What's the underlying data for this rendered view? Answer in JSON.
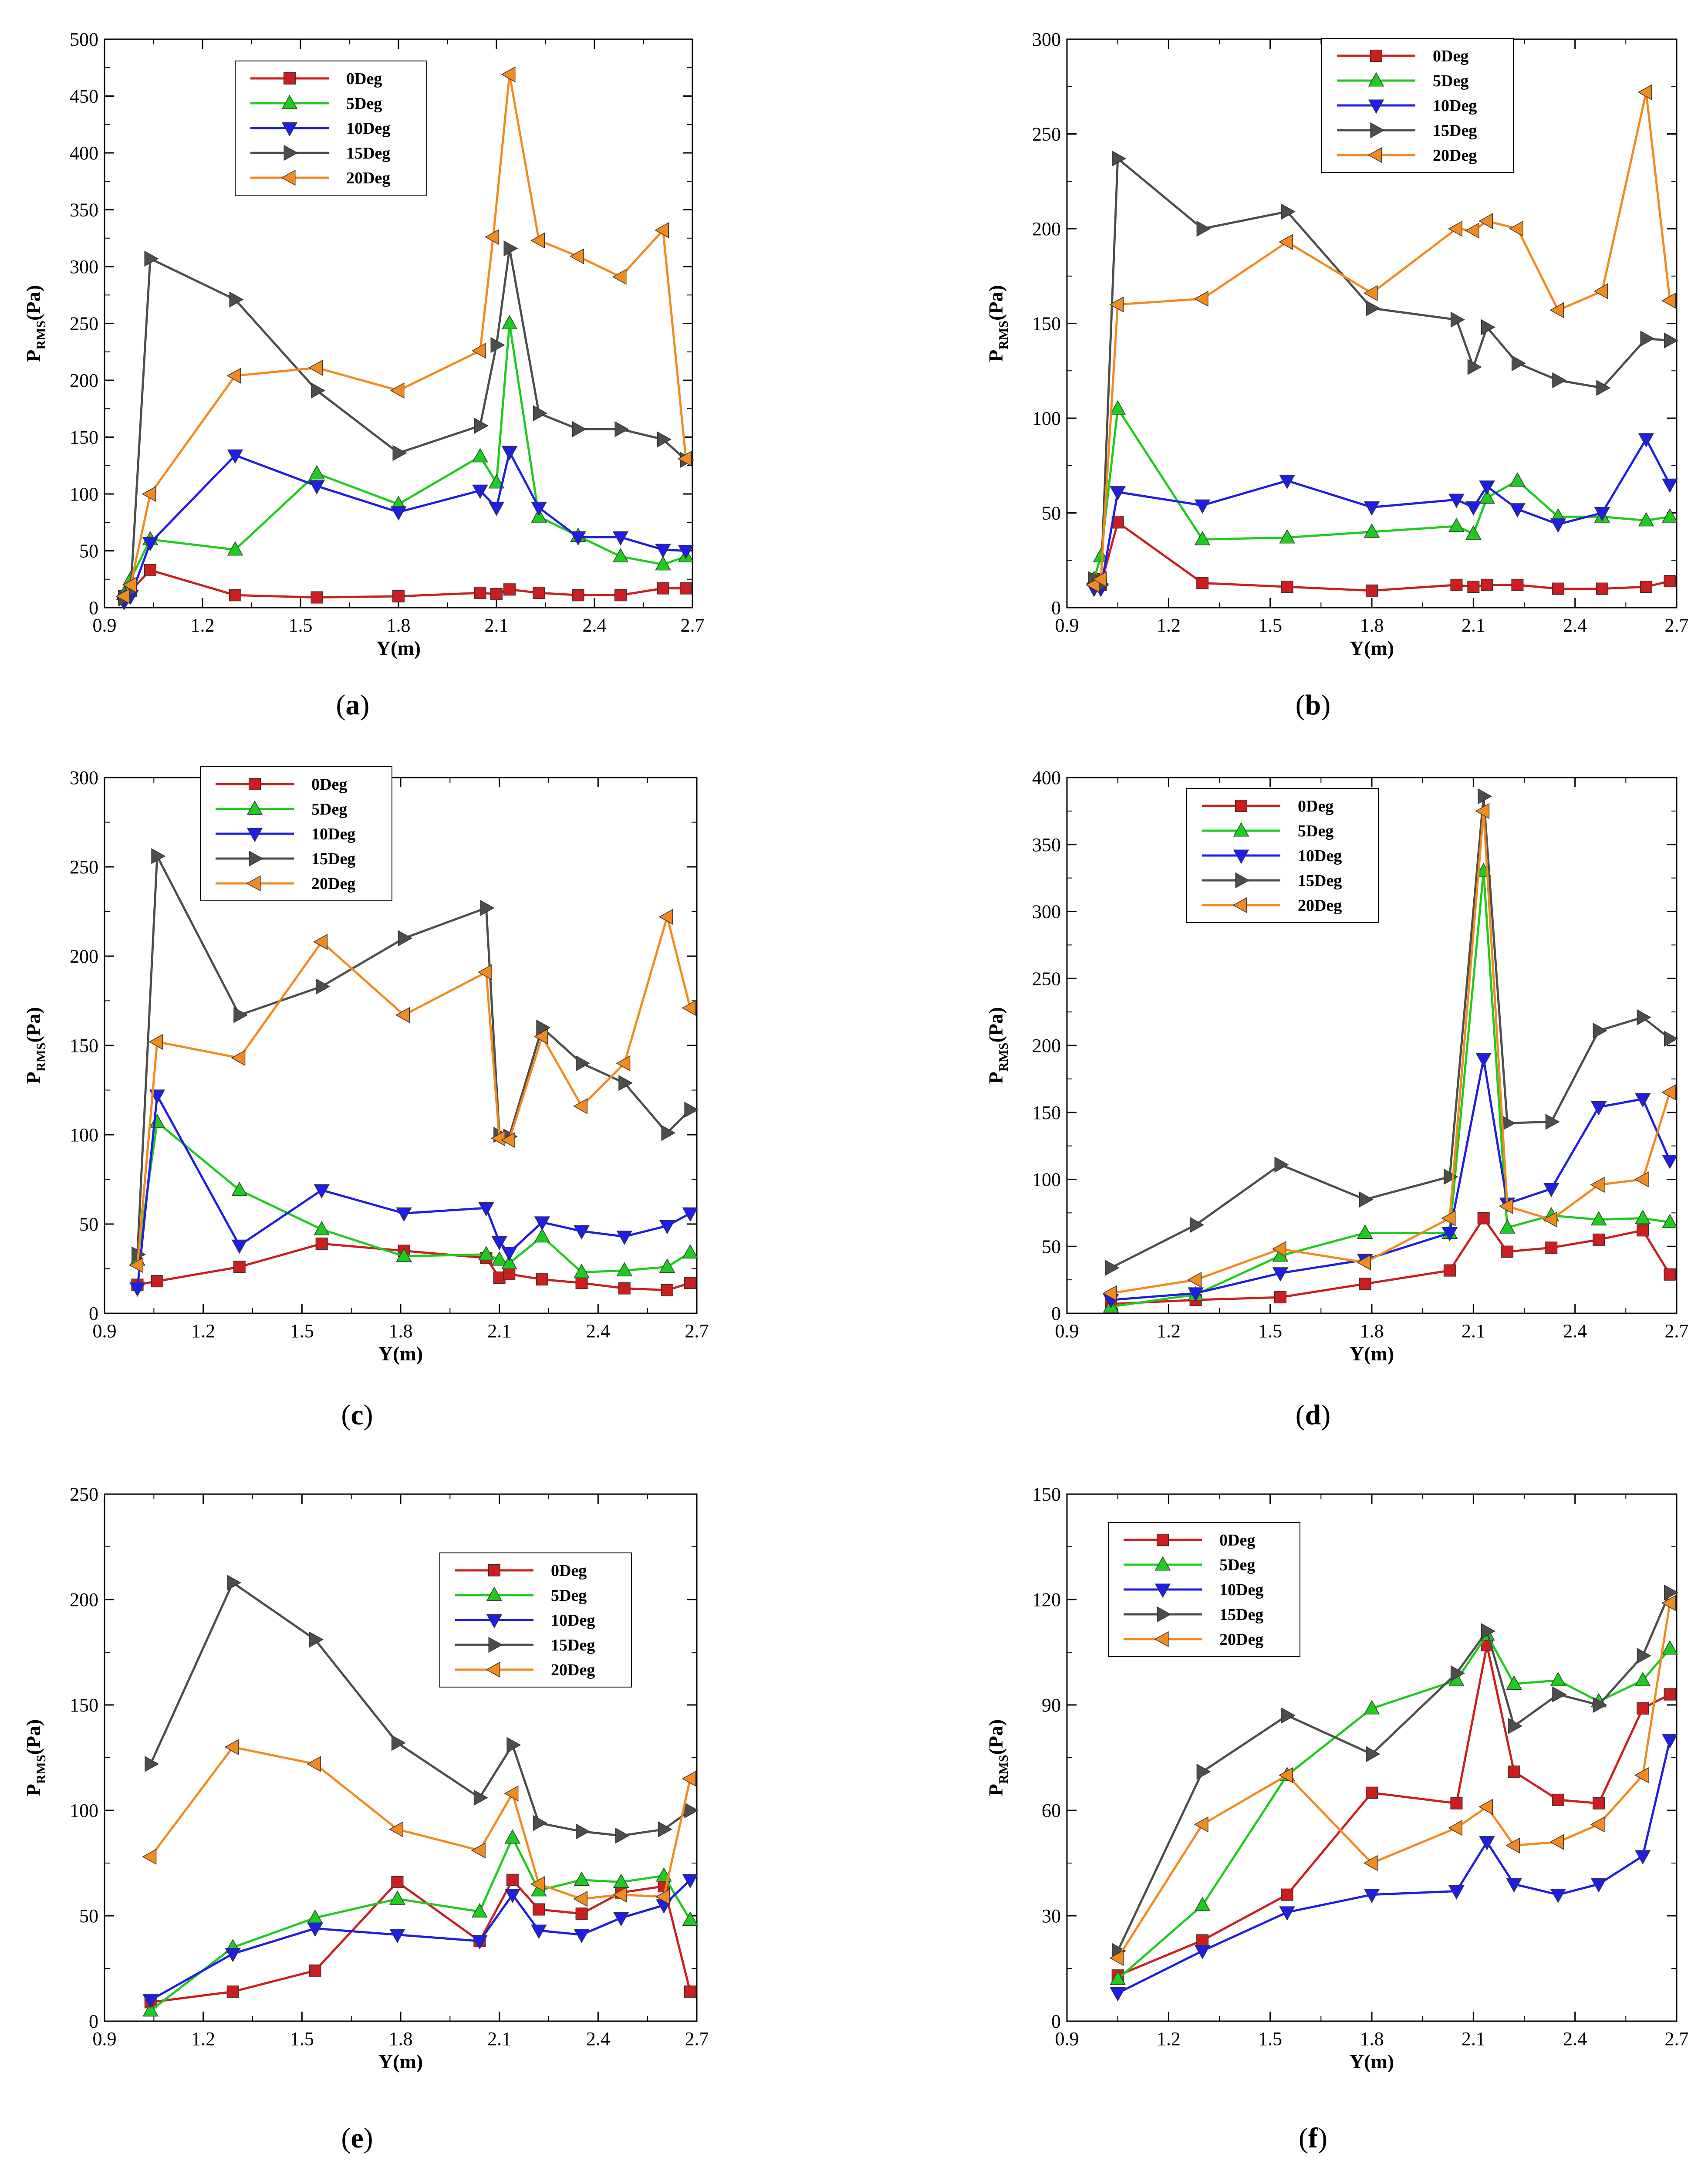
{
  "figure": {
    "xlabel": "Y(m)",
    "ylabel_main": "P",
    "ylabel_sub": "RMS",
    "ylabel_unit": "(Pa)",
    "x_ticks": [
      "0.9",
      "1.2",
      "1.5",
      "1.8",
      "2.1",
      "2.4",
      "2.7"
    ]
  },
  "series_styles": [
    {
      "name": "0Deg",
      "color": "#cc1e1e",
      "marker": "square"
    },
    {
      "name": "5Deg",
      "color": "#1ecc1e",
      "marker": "triangle-up"
    },
    {
      "name": "10Deg",
      "color": "#1e1ee6",
      "marker": "triangle-down"
    },
    {
      "name": "15Deg",
      "color": "#4d4d4d",
      "marker": "triangle-right"
    },
    {
      "name": "20Deg",
      "color": "#f28a1e",
      "marker": "triangle-left"
    }
  ],
  "chart_data": [
    {
      "type": "line",
      "panel_label": "a",
      "xlabel": "Y(m)",
      "ylabel": "PRMS(Pa)",
      "xlim": [
        0.9,
        2.7
      ],
      "ylim": [
        0,
        500
      ],
      "y_ticks": [
        "0",
        "50",
        "100",
        "150",
        "200",
        "250",
        "300",
        "350",
        "400",
        "450",
        "500"
      ],
      "legend_position": "upper-left",
      "series": [
        {
          "name": "0Deg",
          "x": [
            0.96,
            0.98,
            1.04,
            1.3,
            1.55,
            1.8,
            2.05,
            2.1,
            2.14,
            2.23,
            2.35,
            2.48,
            2.61,
            2.68
          ],
          "y": [
            10,
            15,
            33,
            11,
            9,
            10,
            13,
            12,
            16,
            13,
            11,
            11,
            17,
            17
          ]
        },
        {
          "name": "5Deg",
          "x": [
            0.96,
            0.98,
            1.04,
            1.3,
            1.55,
            1.8,
            2.05,
            2.1,
            2.14,
            2.23,
            2.35,
            2.48,
            2.61,
            2.68
          ],
          "y": [
            12,
            25,
            60,
            51,
            118,
            91,
            133,
            110,
            250,
            80,
            63,
            45,
            38,
            45
          ]
        },
        {
          "name": "10Deg",
          "x": [
            0.96,
            0.98,
            1.04,
            1.3,
            1.55,
            1.8,
            2.05,
            2.1,
            2.14,
            2.23,
            2.35,
            2.48,
            2.61,
            2.68
          ],
          "y": [
            5,
            10,
            57,
            134,
            107,
            84,
            103,
            88,
            137,
            88,
            62,
            62,
            51,
            50
          ]
        },
        {
          "name": "15Deg",
          "x": [
            0.96,
            0.98,
            1.04,
            1.3,
            1.55,
            1.8,
            2.05,
            2.1,
            2.14,
            2.23,
            2.35,
            2.48,
            2.61,
            2.68
          ],
          "y": [
            8,
            15,
            307,
            271,
            191,
            136,
            160,
            231,
            316,
            171,
            157,
            157,
            148,
            130
          ]
        },
        {
          "name": "20Deg",
          "x": [
            0.96,
            0.98,
            1.04,
            1.3,
            1.55,
            1.8,
            2.05,
            2.09,
            2.14,
            2.23,
            2.35,
            2.48,
            2.61,
            2.68
          ],
          "y": [
            10,
            20,
            100,
            204,
            211,
            191,
            226,
            326,
            469,
            323,
            309,
            291,
            332,
            131
          ]
        }
      ]
    },
    {
      "type": "line",
      "panel_label": "b",
      "xlabel": "Y(m)",
      "ylabel": "PRMS(Pa)",
      "xlim": [
        0.9,
        2.7
      ],
      "ylim": [
        0,
        300
      ],
      "y_ticks": [
        "0",
        "50",
        "100",
        "150",
        "200",
        "250",
        "300"
      ],
      "legend_position": "top-center",
      "series": [
        {
          "name": "0Deg",
          "x": [
            0.98,
            1.0,
            1.05,
            1.3,
            1.55,
            1.8,
            2.05,
            2.1,
            2.14,
            2.23,
            2.35,
            2.48,
            2.61,
            2.68
          ],
          "y": [
            15,
            12,
            45,
            13,
            11,
            9,
            12,
            11,
            12,
            12,
            10,
            10,
            11,
            14
          ]
        },
        {
          "name": "5Deg",
          "x": [
            0.98,
            1.0,
            1.05,
            1.3,
            1.55,
            1.8,
            2.05,
            2.1,
            2.14,
            2.23,
            2.35,
            2.48,
            2.61,
            2.68
          ],
          "y": [
            15,
            27,
            105,
            36,
            37,
            40,
            43,
            39,
            58,
            67,
            48,
            48,
            46,
            48
          ]
        },
        {
          "name": "10Deg",
          "x": [
            0.98,
            1.0,
            1.05,
            1.3,
            1.55,
            1.8,
            2.05,
            2.1,
            2.14,
            2.23,
            2.35,
            2.48,
            2.61,
            2.68
          ],
          "y": [
            10,
            10,
            61,
            54,
            67,
            53,
            57,
            53,
            64,
            52,
            44,
            50,
            89,
            65
          ]
        },
        {
          "name": "15Deg",
          "x": [
            0.98,
            1.0,
            1.05,
            1.3,
            1.55,
            1.8,
            2.05,
            2.1,
            2.14,
            2.23,
            2.35,
            2.48,
            2.61,
            2.68
          ],
          "y": [
            15,
            12,
            237,
            200,
            209,
            158,
            152,
            127,
            148,
            129,
            120,
            116,
            142,
            141
          ]
        },
        {
          "name": "20Deg",
          "x": [
            0.98,
            1.0,
            1.05,
            1.3,
            1.55,
            1.8,
            2.05,
            2.1,
            2.14,
            2.23,
            2.35,
            2.48,
            2.61,
            2.68
          ],
          "y": [
            12,
            15,
            160,
            163,
            193,
            166,
            200,
            199,
            204,
            200,
            157,
            167,
            272,
            162
          ]
        }
      ]
    },
    {
      "type": "line",
      "panel_label": "c",
      "xlabel": "Y(m)",
      "ylabel": "PRMS(Pa)",
      "xlim": [
        0.9,
        2.7
      ],
      "ylim": [
        0,
        300
      ],
      "y_ticks": [
        "0",
        "50",
        "100",
        "150",
        "200",
        "250",
        "300"
      ],
      "legend_position": "upper-left",
      "series": [
        {
          "name": "0Deg",
          "x": [
            1.0,
            1.06,
            1.31,
            1.56,
            1.81,
            2.06,
            2.1,
            2.13,
            2.23,
            2.35,
            2.48,
            2.61,
            2.68
          ],
          "y": [
            16,
            18,
            26,
            39,
            35,
            31,
            20,
            22,
            19,
            17,
            14,
            13,
            17
          ]
        },
        {
          "name": "5Deg",
          "x": [
            1.0,
            1.06,
            1.31,
            1.56,
            1.81,
            2.06,
            2.1,
            2.13,
            2.23,
            2.35,
            2.48,
            2.61,
            2.68
          ],
          "y": [
            30,
            107,
            69,
            47,
            32,
            33,
            30,
            28,
            43,
            23,
            24,
            26,
            34
          ]
        },
        {
          "name": "10Deg",
          "x": [
            1.0,
            1.06,
            1.31,
            1.56,
            1.81,
            2.06,
            2.1,
            2.13,
            2.23,
            2.35,
            2.48,
            2.61,
            2.68
          ],
          "y": [
            14,
            122,
            38,
            69,
            56,
            59,
            40,
            34,
            51,
            46,
            43,
            49,
            56
          ]
        },
        {
          "name": "15Deg",
          "x": [
            1.0,
            1.06,
            1.31,
            1.56,
            1.81,
            2.06,
            2.1,
            2.13,
            2.23,
            2.35,
            2.48,
            2.61,
            2.68
          ],
          "y": [
            33,
            256,
            167,
            183,
            210,
            227,
            100,
            99,
            160,
            140,
            129,
            101,
            114
          ]
        },
        {
          "name": "20Deg",
          "x": [
            1.0,
            1.06,
            1.31,
            1.56,
            1.81,
            2.06,
            2.1,
            2.13,
            2.23,
            2.35,
            2.48,
            2.61,
            2.68
          ],
          "y": [
            27,
            152,
            143,
            208,
            167,
            191,
            98,
            97,
            155,
            116,
            140,
            222,
            171
          ]
        }
      ]
    },
    {
      "type": "line",
      "panel_label": "d",
      "xlabel": "Y(m)",
      "ylabel": "PRMS(Pa)",
      "xlim": [
        0.9,
        2.7
      ],
      "ylim": [
        0,
        400
      ],
      "y_ticks": [
        "0",
        "50",
        "100",
        "150",
        "200",
        "250",
        "300",
        "350",
        "400"
      ],
      "legend_position": "upper-left",
      "series": [
        {
          "name": "0Deg",
          "x": [
            1.03,
            1.28,
            1.53,
            1.78,
            2.03,
            2.13,
            2.2,
            2.33,
            2.47,
            2.6,
            2.68
          ],
          "y": [
            7,
            10,
            12,
            22,
            32,
            71,
            46,
            49,
            55,
            62,
            29
          ]
        },
        {
          "name": "5Deg",
          "x": [
            1.03,
            1.28,
            1.53,
            1.78,
            2.03,
            2.13,
            2.2,
            2.33,
            2.47,
            2.6,
            2.68
          ],
          "y": [
            5,
            14,
            43,
            60,
            60,
            330,
            64,
            73,
            70,
            71,
            68
          ]
        },
        {
          "name": "10Deg",
          "x": [
            1.03,
            1.28,
            1.53,
            1.78,
            2.03,
            2.13,
            2.2,
            2.33,
            2.47,
            2.6,
            2.68
          ],
          "y": [
            10,
            15,
            30,
            40,
            60,
            190,
            82,
            93,
            154,
            160,
            114
          ]
        },
        {
          "name": "15Deg",
          "x": [
            1.03,
            1.28,
            1.53,
            1.78,
            2.03,
            2.13,
            2.2,
            2.33,
            2.47,
            2.6,
            2.68
          ],
          "y": [
            34,
            66,
            111,
            85,
            102,
            386,
            142,
            143,
            211,
            221,
            205
          ]
        },
        {
          "name": "20Deg",
          "x": [
            1.03,
            1.28,
            1.53,
            1.78,
            2.03,
            2.13,
            2.2,
            2.33,
            2.47,
            2.6,
            2.68
          ],
          "y": [
            15,
            25,
            48,
            38,
            71,
            375,
            80,
            70,
            96,
            100,
            165
          ]
        }
      ]
    },
    {
      "type": "line",
      "panel_label": "e",
      "xlabel": "Y(m)",
      "ylabel": "PRMS(Pa)",
      "xlim": [
        0.9,
        2.7
      ],
      "ylim": [
        0,
        250
      ],
      "y_ticks": [
        "0",
        "50",
        "100",
        "150",
        "200",
        "250"
      ],
      "legend_position": "upper-right",
      "series": [
        {
          "name": "0Deg",
          "x": [
            1.04,
            1.29,
            1.54,
            1.79,
            2.04,
            2.14,
            2.22,
            2.35,
            2.47,
            2.6,
            2.68
          ],
          "y": [
            9,
            14,
            24,
            66,
            38,
            67,
            53,
            51,
            61,
            64,
            14
          ]
        },
        {
          "name": "5Deg",
          "x": [
            1.04,
            1.29,
            1.54,
            1.79,
            2.04,
            2.14,
            2.22,
            2.35,
            2.47,
            2.6,
            2.68
          ],
          "y": [
            5,
            35,
            49,
            58,
            52,
            87,
            62,
            67,
            66,
            69,
            48
          ]
        },
        {
          "name": "10Deg",
          "x": [
            1.04,
            1.29,
            1.54,
            1.79,
            2.04,
            2.14,
            2.22,
            2.35,
            2.47,
            2.6,
            2.68
          ],
          "y": [
            10,
            32,
            44,
            41,
            38,
            60,
            43,
            41,
            49,
            55,
            67
          ]
        },
        {
          "name": "15Deg",
          "x": [
            1.04,
            1.29,
            1.54,
            1.79,
            2.04,
            2.14,
            2.22,
            2.35,
            2.47,
            2.6,
            2.68
          ],
          "y": [
            122,
            208,
            181,
            132,
            106,
            131,
            94,
            90,
            88,
            91,
            100
          ]
        },
        {
          "name": "20Deg",
          "x": [
            1.04,
            1.29,
            1.54,
            1.79,
            2.04,
            2.14,
            2.22,
            2.35,
            2.47,
            2.6,
            2.68
          ],
          "y": [
            78,
            130,
            122,
            91,
            81,
            108,
            65,
            58,
            60,
            59,
            115
          ]
        }
      ]
    },
    {
      "type": "line",
      "panel_label": "f",
      "xlabel": "Y(m)",
      "ylabel": "PRMS(Pa)",
      "xlim": [
        0.9,
        2.7
      ],
      "ylim": [
        0,
        150
      ],
      "y_ticks": [
        "0",
        "30",
        "60",
        "90",
        "120",
        "150"
      ],
      "legend_position": "upper-left",
      "series": [
        {
          "name": "0Deg",
          "x": [
            1.05,
            1.3,
            1.55,
            1.8,
            2.05,
            2.14,
            2.22,
            2.35,
            2.47,
            2.6,
            2.68
          ],
          "y": [
            13,
            23,
            36,
            65,
            62,
            107,
            71,
            63,
            62,
            89,
            93
          ]
        },
        {
          "name": "5Deg",
          "x": [
            1.05,
            1.3,
            1.55,
            1.8,
            2.05,
            2.14,
            2.22,
            2.35,
            2.47,
            2.6,
            2.68
          ],
          "y": [
            12,
            33,
            70,
            89,
            97,
            110,
            96,
            97,
            91,
            97,
            106
          ]
        },
        {
          "name": "10Deg",
          "x": [
            1.05,
            1.3,
            1.55,
            1.8,
            2.05,
            2.14,
            2.22,
            2.35,
            2.47,
            2.6,
            2.68
          ],
          "y": [
            8,
            20,
            31,
            36,
            37,
            51,
            39,
            36,
            39,
            47,
            80
          ]
        },
        {
          "name": "15Deg",
          "x": [
            1.05,
            1.3,
            1.55,
            1.8,
            2.05,
            2.14,
            2.22,
            2.35,
            2.47,
            2.6,
            2.68
          ],
          "y": [
            20,
            71,
            87,
            76,
            99,
            111,
            84,
            93,
            90,
            104,
            122
          ]
        },
        {
          "name": "20Deg",
          "x": [
            1.05,
            1.3,
            1.55,
            1.8,
            2.05,
            2.14,
            2.22,
            2.35,
            2.47,
            2.6,
            2.68
          ],
          "y": [
            18,
            56,
            70,
            45,
            55,
            61,
            50,
            51,
            56,
            70,
            119
          ]
        }
      ]
    }
  ]
}
